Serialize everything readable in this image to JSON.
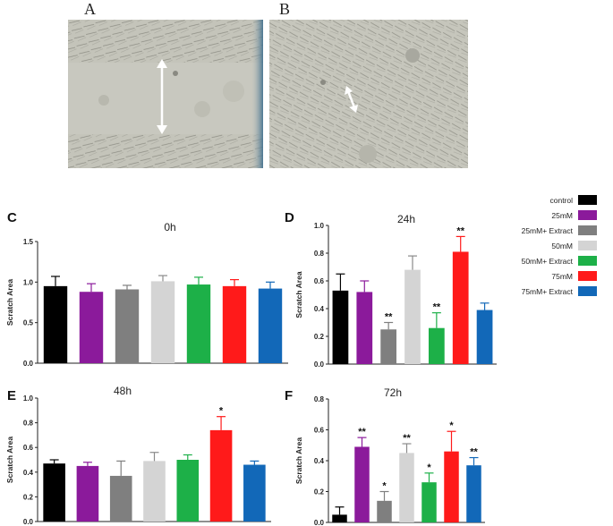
{
  "photos": [
    {
      "letter": "A",
      "caption_icon": "double-arrow-icon"
    },
    {
      "letter": "B",
      "caption_icon": "double-arrow-icon"
    }
  ],
  "legend": [
    {
      "label": "control",
      "color": "#000000"
    },
    {
      "label": "25mM",
      "color": "#8B1A9B"
    },
    {
      "label": "25mM+ Extract",
      "color": "#7F7F7F"
    },
    {
      "label": "50mM",
      "color": "#D4D4D4"
    },
    {
      "label": "50mM+ Extract",
      "color": "#1DB048"
    },
    {
      "label": "75mM",
      "color": "#FF1A1A"
    },
    {
      "label": "75mM+ Extract",
      "color": "#1268B8"
    }
  ],
  "chart_data": [
    {
      "panel": "C",
      "title": "0h",
      "type": "bar",
      "ylabel": "Scratch Area",
      "ylim": [
        0,
        1.5
      ],
      "yticks": [
        "0.0",
        "0.5",
        "1.0",
        "1.5"
      ],
      "tickValues": [
        0,
        0.5,
        1.0,
        1.5
      ],
      "values": [
        0.95,
        0.88,
        0.91,
        1.01,
        0.97,
        0.95,
        0.92
      ],
      "errors": [
        0.12,
        0.1,
        0.05,
        0.07,
        0.09,
        0.08,
        0.08
      ],
      "significance": [
        "",
        "",
        "",
        "",
        "",
        "",
        ""
      ]
    },
    {
      "panel": "D",
      "title": "24h",
      "type": "bar",
      "ylabel": "Scratch Area",
      "ylim": [
        0,
        1.0
      ],
      "yticks": [
        "0.0",
        "0.2",
        "0.4",
        "0.6",
        "0.8",
        "1.0"
      ],
      "tickValues": [
        0,
        0.2,
        0.4,
        0.6,
        0.8,
        1.0
      ],
      "values": [
        0.53,
        0.52,
        0.25,
        0.68,
        0.26,
        0.81,
        0.39
      ],
      "errors": [
        0.12,
        0.08,
        0.05,
        0.1,
        0.11,
        0.11,
        0.05
      ],
      "significance": [
        "",
        "",
        "**",
        "",
        "**",
        "**",
        ""
      ]
    },
    {
      "panel": "E",
      "title": "48h",
      "type": "bar",
      "ylabel": "Scratch Area",
      "ylim": [
        0,
        1.0
      ],
      "yticks": [
        "0.0",
        "0.2",
        "0.4",
        "0.6",
        "0.8",
        "1.0"
      ],
      "tickValues": [
        0,
        0.2,
        0.4,
        0.6,
        0.8,
        1.0
      ],
      "values": [
        0.47,
        0.45,
        0.37,
        0.49,
        0.5,
        0.74,
        0.46
      ],
      "errors": [
        0.03,
        0.03,
        0.12,
        0.07,
        0.04,
        0.11,
        0.03
      ],
      "significance": [
        "",
        "",
        "",
        "",
        "",
        "*",
        ""
      ]
    },
    {
      "panel": "F",
      "title": "72h",
      "type": "bar",
      "ylabel": "Scratch Area",
      "ylim": [
        0,
        0.8
      ],
      "yticks": [
        "0.0",
        "0.2",
        "0.4",
        "0.6",
        "0.8"
      ],
      "tickValues": [
        0,
        0.2,
        0.4,
        0.6,
        0.8
      ],
      "values": [
        0.05,
        0.49,
        0.14,
        0.45,
        0.26,
        0.46,
        0.37
      ],
      "errors": [
        0.05,
        0.06,
        0.06,
        0.06,
        0.06,
        0.13,
        0.05
      ],
      "significance": [
        "",
        "**",
        "*",
        "**",
        "*",
        "*",
        "**"
      ]
    }
  ]
}
